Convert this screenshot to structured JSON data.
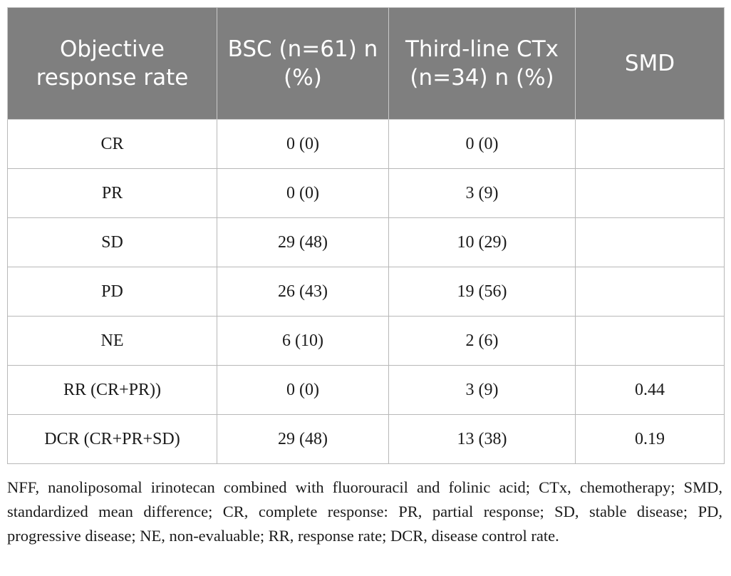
{
  "table": {
    "headers": [
      "Objective response rate",
      "BSC (n=61) n (%)",
      "Third-line CTx (n=34) n (%)",
      "SMD"
    ],
    "rows": [
      [
        "CR",
        "0 (0)",
        "0 (0)",
        ""
      ],
      [
        "PR",
        "0 (0)",
        "3 (9)",
        ""
      ],
      [
        "SD",
        "29 (48)",
        "10 (29)",
        ""
      ],
      [
        "PD",
        "26 (43)",
        "19 (56)",
        ""
      ],
      [
        "NE",
        "6 (10)",
        "2 (6)",
        ""
      ],
      [
        "RR (CR+PR))",
        "0 (0)",
        "3 (9)",
        "0.44"
      ],
      [
        "DCR (CR+PR+SD)",
        "29 (48)",
        "13 (38)",
        "0.19"
      ]
    ]
  },
  "footnote": "NFF, nanoliposomal irinotecan combined with fluorouracil and folinic acid; CTx, chemotherapy; SMD, standardized mean difference; CR, complete response: PR, partial response; SD, stable disease; PD, progressive disease; NE, non-evaluable; RR, response rate; DCR, disease control rate."
}
